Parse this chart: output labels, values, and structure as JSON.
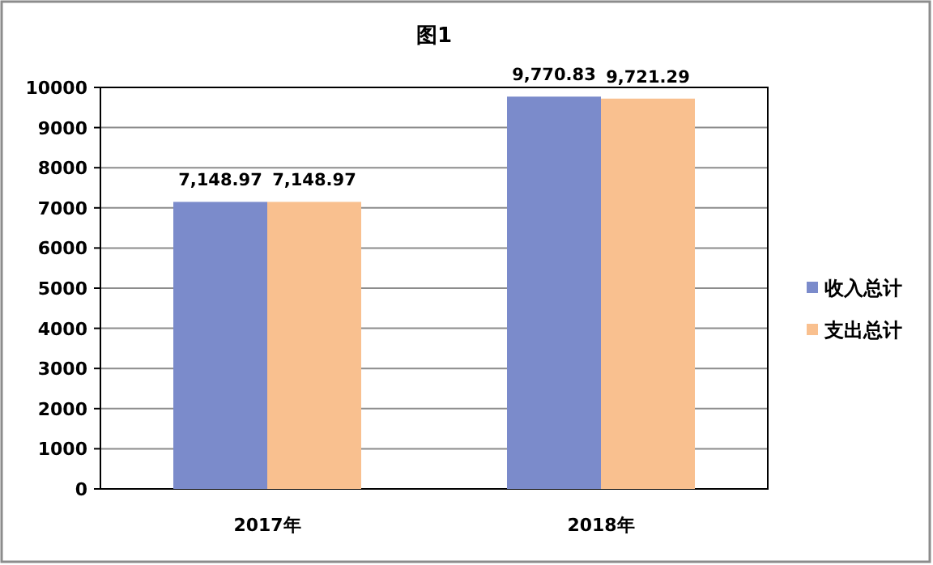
{
  "chart_data": {
    "type": "bar",
    "title": "图1",
    "categories": [
      "2017年",
      "2018年"
    ],
    "series": [
      {
        "name": "收入总计",
        "color": "#7b8bcb",
        "values": [
          7148.97,
          9770.83
        ],
        "value_labels": [
          "7,148.97",
          "9,770.83"
        ]
      },
      {
        "name": "支出总计",
        "color": "#f9c08f",
        "values": [
          7148.97,
          9721.29
        ],
        "value_labels": [
          "7,148.97",
          "9,721.29"
        ]
      }
    ],
    "ylim": [
      0,
      10000
    ],
    "yticks": [
      0,
      1000,
      2000,
      3000,
      4000,
      5000,
      6000,
      7000,
      8000,
      9000,
      10000
    ],
    "grid": "y",
    "legend": "right"
  }
}
